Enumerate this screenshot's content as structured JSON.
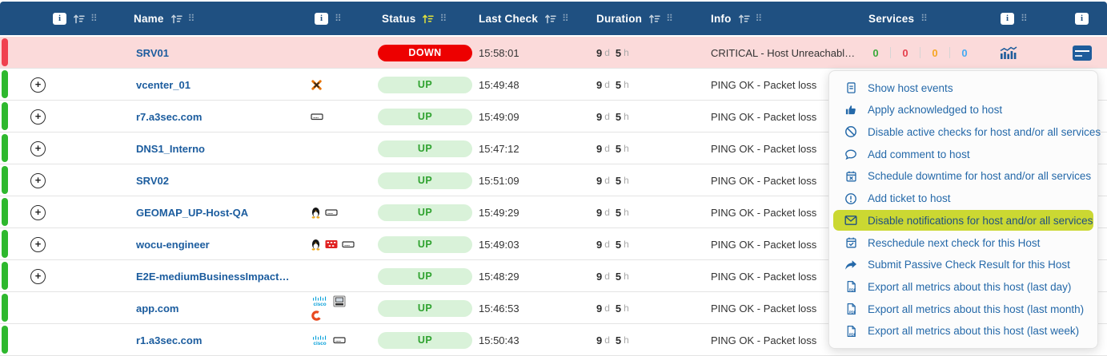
{
  "icons": {
    "info_badge": "i",
    "expand_plus": "+",
    "drag_handle": "⠿"
  },
  "colors": {
    "header_bg": "#1f5081",
    "link_blue": "#1b5c9e",
    "down_red": "#ed0000",
    "up_green_bg": "#d9f2d9",
    "up_green_text": "#2fa22f",
    "stripe_green": "#2eb82e",
    "stripe_red": "#f0414f",
    "menu_highlight": "#cbd832",
    "menu_text": "#2569a9",
    "svc_ok": "#3aaa3a",
    "svc_critical": "#e5404d",
    "svc_warning": "#f5a623",
    "svc_unknown": "#45aaf2",
    "sort_active": "#e3e33c"
  },
  "table": {
    "columns": {
      "name": "Name",
      "status": "Status",
      "last_check": "Last Check",
      "duration": "Duration",
      "info": "Info",
      "services": "Services"
    },
    "duration_units": {
      "days": "d",
      "hours": "h"
    },
    "rows": [
      {
        "name": "SRV01",
        "status": "DOWN",
        "last_check": "15:58:01",
        "duration_days": "9",
        "duration_hours": "5",
        "info": "CRITICAL - Host Unreachabl…",
        "expandable": false,
        "icons": [],
        "services": {
          "ok": "0",
          "critical": "0",
          "warning": "0",
          "unknown": "0"
        }
      },
      {
        "name": "vcenter_01",
        "status": "UP",
        "last_check": "15:49:48",
        "duration_days": "9",
        "duration_hours": "5",
        "info": "PING OK - Packet loss",
        "expandable": true,
        "icons": [
          "proxmox"
        ]
      },
      {
        "name": "r7.a3sec.com",
        "status": "UP",
        "last_check": "15:49:09",
        "duration_days": "9",
        "duration_hours": "5",
        "info": "PING OK - Packet loss",
        "expandable": true,
        "icons": [
          "storage"
        ]
      },
      {
        "name": "DNS1_Interno",
        "status": "UP",
        "last_check": "15:47:12",
        "duration_days": "9",
        "duration_hours": "5",
        "info": "PING OK - Packet loss",
        "expandable": true,
        "icons": []
      },
      {
        "name": "SRV02",
        "status": "UP",
        "last_check": "15:51:09",
        "duration_days": "9",
        "duration_hours": "5",
        "info": "PING OK - Packet loss",
        "expandable": true,
        "icons": []
      },
      {
        "name": "GEOMAP_UP-Host-QA",
        "status": "UP",
        "last_check": "15:49:29",
        "duration_days": "9",
        "duration_hours": "5",
        "info": "PING OK - Packet loss",
        "expandable": true,
        "icons": [
          "linux",
          "storage"
        ]
      },
      {
        "name": "wocu-engineer",
        "status": "UP",
        "last_check": "15:49:03",
        "duration_days": "9",
        "duration_hours": "5",
        "info": "PING OK - Packet loss",
        "expandable": true,
        "icons": [
          "linux",
          "fortinet",
          "storage"
        ]
      },
      {
        "name": "E2E-mediumBusinessImpact…",
        "status": "UP",
        "last_check": "15:48:29",
        "duration_days": "9",
        "duration_hours": "5",
        "info": "PING OK - Packet loss",
        "expandable": true,
        "icons": []
      },
      {
        "name": "app.com",
        "status": "UP",
        "last_check": "15:46:53",
        "duration_days": "9",
        "duration_hours": "5",
        "info": "PING OK - Packet loss",
        "expandable": false,
        "icons": [
          "cisco",
          "workstation",
          "openshift"
        ]
      },
      {
        "name": "r1.a3sec.com",
        "status": "UP",
        "last_check": "15:50:43",
        "duration_days": "9",
        "duration_hours": "5",
        "info": "PING OK - Packet loss",
        "expandable": false,
        "icons": [
          "cisco",
          "storage"
        ]
      }
    ]
  },
  "menu": {
    "items": [
      {
        "label": "Show host events",
        "icon": "document",
        "highlighted": false
      },
      {
        "label": "Apply acknowledged to host",
        "icon": "thumbs-up",
        "highlighted": false
      },
      {
        "label": "Disable active checks for host and/or all services",
        "icon": "ban",
        "highlighted": false
      },
      {
        "label": "Add comment to host",
        "icon": "comment",
        "highlighted": false
      },
      {
        "label": "Schedule downtime for host and/or all services",
        "icon": "calendar-x",
        "highlighted": false
      },
      {
        "label": "Add ticket to host",
        "icon": "alert-circle",
        "highlighted": false
      },
      {
        "label": "Disable notifications for host and/or all services",
        "icon": "envelope",
        "highlighted": true
      },
      {
        "label": "Reschedule next check for this Host",
        "icon": "calendar-check",
        "highlighted": false
      },
      {
        "label": "Submit Passive Check Result for this Host",
        "icon": "share-arrow",
        "highlighted": false
      },
      {
        "label": "Export all metrics about this host (last day)",
        "icon": "file-pdf",
        "highlighted": false
      },
      {
        "label": "Export all metrics about this host (last month)",
        "icon": "file-pdf",
        "highlighted": false
      },
      {
        "label": "Export all metrics about this host (last week)",
        "icon": "file-pdf",
        "highlighted": false
      }
    ]
  }
}
